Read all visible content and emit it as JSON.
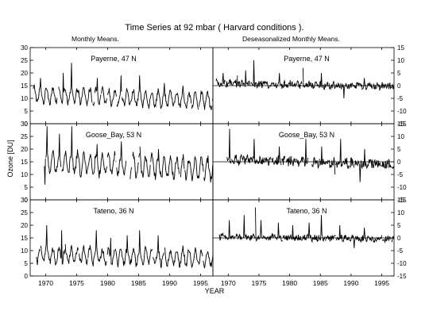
{
  "title": "Time Series at  92  mbar  ( Harvard conditions ).",
  "left_header": "Monthly Means.",
  "right_header": "Deseasonalized Monthly Means.",
  "ylabel": "Ozone [DU]",
  "xlabel": "YEAR",
  "x_ticks": [
    "1970",
    "1975",
    "1980",
    "1985",
    "1990",
    "1995"
  ],
  "chart_data": [
    {
      "type": "line",
      "column": "left",
      "station": "Payerne, 47 N",
      "xlabel": "YEAR",
      "ylabel": "Ozone [DU]",
      "xlim": [
        1967.5,
        1997
      ],
      "ylim": [
        0,
        30
      ],
      "y_ticks": [
        0,
        5,
        10,
        15,
        20,
        25,
        30
      ],
      "series": [
        {
          "base": 11.5,
          "trend_per_year": -0.08,
          "amplitude": 3.0,
          "noise": 1.2,
          "spikes": [
            [
              1969.2,
              18
            ],
            [
              1972.8,
              20
            ],
            [
              1974.2,
              24
            ],
            [
              1978.3,
              18
            ],
            [
              1982.2,
              19
            ],
            [
              1985.2,
              19
            ],
            [
              1989.2,
              16
            ],
            [
              1992.2,
              15
            ]
          ],
          "gaps": [],
          "start": 1968.0,
          "end": 1997.0
        }
      ]
    },
    {
      "type": "line",
      "column": "left",
      "station": "Goose_Bay, 53 N",
      "xlabel": "YEAR",
      "ylabel": "Ozone [DU]",
      "xlim": [
        1967.5,
        1997
      ],
      "ylim": [
        0,
        30
      ],
      "y_ticks": [
        0,
        5,
        10,
        15,
        20,
        25,
        30
      ],
      "series": [
        {
          "base": 15.0,
          "trend_per_year": -0.1,
          "amplitude": 4.0,
          "noise": 1.6,
          "spikes": [
            [
              1969.9,
              6
            ],
            [
              1970.2,
              29
            ],
            [
              1972.2,
              26
            ],
            [
              1974.2,
              29
            ],
            [
              1978.3,
              22
            ],
            [
              1982.2,
              23
            ],
            [
              1985.2,
              21
            ],
            [
              1988.2,
              20
            ],
            [
              1992.2,
              18
            ]
          ],
          "gaps": [
            [
              1968.0,
              1969.8
            ],
            [
              1983.0,
              1983.6
            ]
          ],
          "start": 1969.8,
          "end": 1997.0
        }
      ]
    },
    {
      "type": "line",
      "column": "left",
      "station": "Tateno, 36 N",
      "xlabel": "YEAR",
      "ylabel": "Ozone [DU]",
      "xlim": [
        1967.5,
        1997
      ],
      "ylim": [
        0,
        30
      ],
      "y_ticks": [
        0,
        5,
        10,
        15,
        20,
        25,
        30
      ],
      "series": [
        {
          "base": 8.5,
          "trend_per_year": -0.05,
          "amplitude": 3.0,
          "noise": 1.4,
          "spikes": [
            [
              1970.2,
              20
            ],
            [
              1972.6,
              18
            ],
            [
              1975.3,
              18
            ],
            [
              1978.2,
              18
            ],
            [
              1980.5,
              15
            ],
            [
              1983.2,
              16
            ],
            [
              1985.2,
              18
            ],
            [
              1988.2,
              16
            ],
            [
              1992.2,
              12
            ]
          ],
          "gaps": [],
          "start": 1968.5,
          "end": 1997.0
        }
      ]
    },
    {
      "type": "line",
      "column": "right",
      "station": "Payerne, 47 N",
      "xlabel": "YEAR",
      "ylabel": "",
      "xlim": [
        1967.5,
        1997
      ],
      "ylim": [
        -15,
        15
      ],
      "y_ticks": [
        -15,
        -10,
        -5,
        0,
        5,
        10,
        15
      ],
      "series": [
        {
          "base": 0.8,
          "trend_per_year": -0.04,
          "amplitude": 0.4,
          "noise": 1.4,
          "spikes": [
            [
              1969.2,
              5
            ],
            [
              1971.5,
              4
            ],
            [
              1972.8,
              6
            ],
            [
              1974.2,
              10
            ],
            [
              1978.3,
              5
            ],
            [
              1982.2,
              7
            ],
            [
              1985.2,
              5
            ],
            [
              1988.8,
              -5
            ],
            [
              1992.2,
              3
            ]
          ],
          "gaps": [],
          "start": 1968.0,
          "end": 1997.0
        }
      ]
    },
    {
      "type": "line",
      "column": "right",
      "station": "Goose_Bay, 53 N",
      "xlabel": "YEAR",
      "ylabel": "",
      "xlim": [
        1967.5,
        1997
      ],
      "ylim": [
        -15,
        15
      ],
      "y_ticks": [
        -15,
        -10,
        -5,
        0,
        5,
        10,
        15
      ],
      "series": [
        {
          "base": 1.0,
          "trend_per_year": -0.07,
          "amplitude": 0.5,
          "noise": 1.8,
          "spikes": [
            [
              1970.2,
              13
            ],
            [
              1974.2,
              9
            ],
            [
              1978.3,
              6
            ],
            [
              1982.6,
              9
            ],
            [
              1983.5,
              -6
            ],
            [
              1985.2,
              6
            ],
            [
              1987.4,
              -5
            ],
            [
              1988.3,
              9
            ],
            [
              1991.5,
              -8
            ],
            [
              1992.2,
              5
            ]
          ],
          "gaps": [
            [
              1968.0,
              1969.8
            ],
            [
              1983.0,
              1983.6
            ]
          ],
          "start": 1969.8,
          "end": 1997.0
        }
      ]
    },
    {
      "type": "line",
      "column": "right",
      "station": "Tateno, 36 N",
      "xlabel": "YEAR",
      "ylabel": "",
      "xlim": [
        1967.5,
        1997
      ],
      "ylim": [
        -15,
        15
      ],
      "y_ticks": [
        -15,
        -10,
        -5,
        0,
        5,
        10,
        15
      ],
      "series": [
        {
          "base": 0.5,
          "trend_per_year": -0.03,
          "amplitude": 0.3,
          "noise": 1.3,
          "spikes": [
            [
              1970.2,
              7
            ],
            [
              1972.6,
              9
            ],
            [
              1974.4,
              12
            ],
            [
              1975.3,
              7
            ],
            [
              1978.2,
              6
            ],
            [
              1980.5,
              5
            ],
            [
              1983.2,
              6
            ],
            [
              1985.2,
              9
            ],
            [
              1988.2,
              5
            ],
            [
              1990.5,
              -4
            ],
            [
              1992.2,
              4
            ]
          ],
          "gaps": [],
          "start": 1968.5,
          "end": 1997.0
        }
      ]
    }
  ]
}
